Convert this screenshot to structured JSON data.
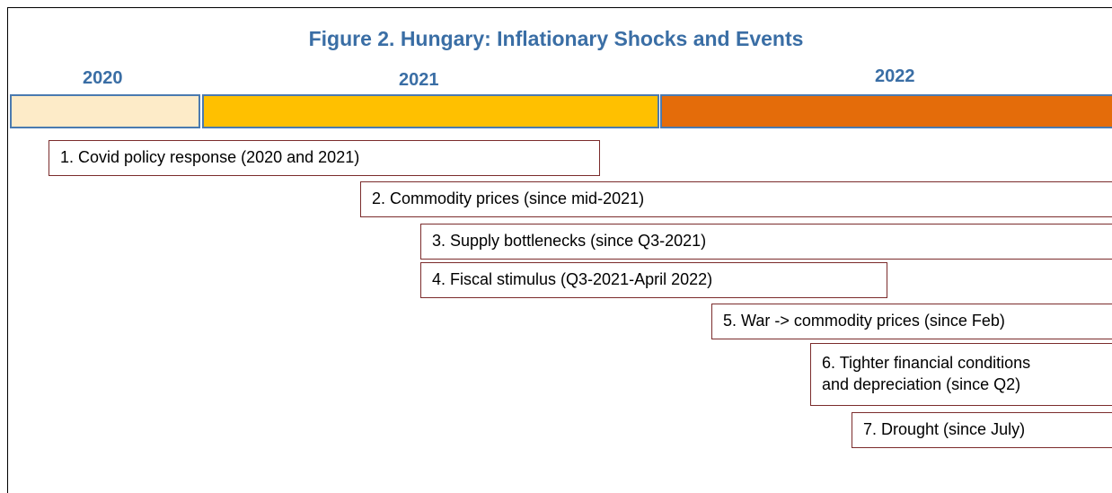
{
  "title": "Figure 2. Hungary: Inflationary Shocks and Events",
  "years": [
    "2020",
    "2021",
    "2022"
  ],
  "events": [
    {
      "lines": [
        "1. Covid policy response (2020 and 2021)"
      ]
    },
    {
      "lines": [
        "2. Commodity prices (since mid-2021)"
      ]
    },
    {
      "lines": [
        "3. Supply bottlenecks (since Q3-2021)"
      ]
    },
    {
      "lines": [
        "4. Fiscal stimulus (Q3-2021-April 2022)"
      ]
    },
    {
      "lines": [
        "5. War -> commodity prices (since Feb)"
      ]
    },
    {
      "lines": [
        "6. Tighter financial conditions",
        "and depreciation (since Q2)"
      ]
    },
    {
      "lines": [
        "7. Drought (since July)"
      ]
    }
  ]
}
